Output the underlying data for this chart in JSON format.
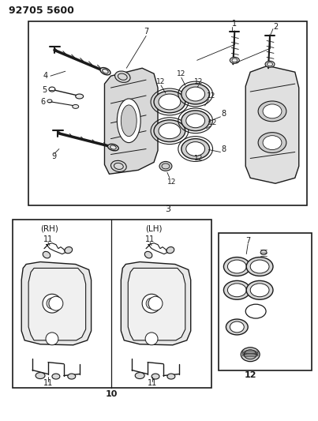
{
  "title": "92705 5600",
  "bg_color": "#ffffff",
  "line_color": "#1a1a1a",
  "fig_width": 4.03,
  "fig_height": 5.33,
  "dpi": 100
}
